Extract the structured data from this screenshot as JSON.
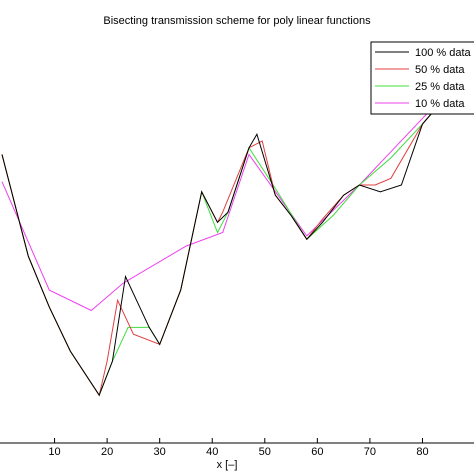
{
  "chart_data": {
    "type": "line",
    "title": "Bisecting transmission scheme for poly linear functions",
    "xlabel": "x [–]",
    "ylabel": "",
    "xlim": [
      0,
      90
    ],
    "ylim": [
      0,
      1
    ],
    "xticks": [
      10,
      20,
      30,
      40,
      50,
      60,
      70,
      80
    ],
    "grid": false,
    "legend_position": "top-right",
    "series": [
      {
        "name": "100 % data",
        "color": "#000000",
        "points": [
          [
            0,
            0.73
          ],
          [
            5,
            0.43
          ],
          [
            9,
            0.28
          ],
          [
            13,
            0.15
          ],
          [
            18.5,
            0.02
          ],
          [
            21,
            0.12
          ],
          [
            23.5,
            0.37
          ],
          [
            28,
            0.22
          ],
          [
            30,
            0.17
          ],
          [
            34,
            0.33
          ],
          [
            38,
            0.62
          ],
          [
            41,
            0.53
          ],
          [
            43,
            0.56
          ],
          [
            47,
            0.75
          ],
          [
            48.5,
            0.79
          ],
          [
            52,
            0.61
          ],
          [
            55,
            0.55
          ],
          [
            58,
            0.48
          ],
          [
            61,
            0.53
          ],
          [
            65,
            0.61
          ],
          [
            68,
            0.64
          ],
          [
            72,
            0.62
          ],
          [
            76,
            0.64
          ],
          [
            80,
            0.82
          ],
          [
            90,
            1.0
          ]
        ]
      },
      {
        "name": "50  % data",
        "color": "#e04040",
        "points": [
          [
            0,
            0.73
          ],
          [
            5,
            0.43
          ],
          [
            9,
            0.28
          ],
          [
            13,
            0.15
          ],
          [
            18.5,
            0.02
          ],
          [
            20,
            0.12
          ],
          [
            22,
            0.3
          ],
          [
            25,
            0.2
          ],
          [
            30,
            0.17
          ],
          [
            34,
            0.33
          ],
          [
            38,
            0.62
          ],
          [
            41,
            0.53
          ],
          [
            42,
            0.56
          ],
          [
            47,
            0.75
          ],
          [
            49.5,
            0.77
          ],
          [
            52,
            0.61
          ],
          [
            55,
            0.55
          ],
          [
            58,
            0.48
          ],
          [
            61,
            0.54
          ],
          [
            65,
            0.61
          ],
          [
            68,
            0.64
          ],
          [
            71,
            0.64
          ],
          [
            74,
            0.66
          ],
          [
            80,
            0.82
          ],
          [
            90,
            1.0
          ]
        ]
      },
      {
        "name": "25  % data",
        "color": "#40dd40",
        "points": [
          [
            0,
            0.73
          ],
          [
            5,
            0.43
          ],
          [
            9,
            0.28
          ],
          [
            13,
            0.15
          ],
          [
            18.5,
            0.02
          ],
          [
            21,
            0.12
          ],
          [
            24,
            0.22
          ],
          [
            28,
            0.22
          ],
          [
            30,
            0.17
          ],
          [
            34,
            0.33
          ],
          [
            38,
            0.62
          ],
          [
            41,
            0.5
          ],
          [
            43,
            0.56
          ],
          [
            47,
            0.75
          ],
          [
            52,
            0.63
          ],
          [
            58,
            0.48
          ],
          [
            63,
            0.55
          ],
          [
            68,
            0.64
          ],
          [
            74,
            0.72
          ],
          [
            80,
            0.82
          ],
          [
            90,
            1.0
          ]
        ]
      },
      {
        "name": "10  % data",
        "color": "#ee40ee",
        "points": [
          [
            0,
            0.65
          ],
          [
            9,
            0.33
          ],
          [
            17,
            0.27
          ],
          [
            23,
            0.35
          ],
          [
            35,
            0.46
          ],
          [
            42,
            0.5
          ],
          [
            47,
            0.73
          ],
          [
            58,
            0.49
          ],
          [
            68,
            0.64
          ],
          [
            90,
            1.0
          ]
        ]
      }
    ]
  }
}
